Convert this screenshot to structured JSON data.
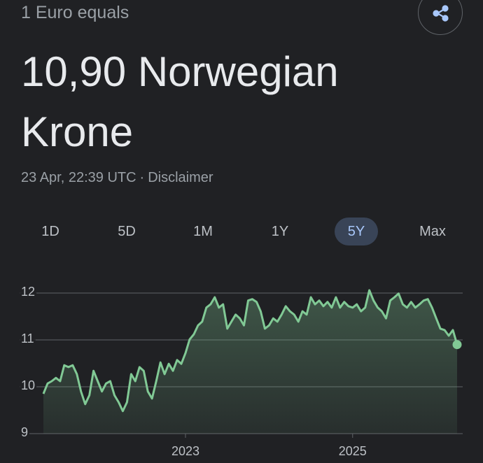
{
  "header": {
    "subtitle": "1 Euro equals",
    "rate": "10,90 Norwegian Krone",
    "timestamp": "23 Apr, 22:39 UTC",
    "separator": "·",
    "disclaimer": "Disclaimer"
  },
  "tabs": {
    "items": [
      "1D",
      "5D",
      "1M",
      "1Y",
      "5Y",
      "Max"
    ],
    "selected": 4
  },
  "chart_data": {
    "type": "area",
    "color": "#81c995",
    "x": [
      2021.3,
      2021.35,
      2021.4,
      2021.45,
      2021.5,
      2021.55,
      2021.6,
      2021.65,
      2021.7,
      2021.75,
      2021.8,
      2021.85,
      2021.9,
      2021.95,
      2022,
      2022.05,
      2022.1,
      2022.15,
      2022.2,
      2022.25,
      2022.3,
      2022.35,
      2022.4,
      2022.45,
      2022.5,
      2022.55,
      2022.6,
      2022.65,
      2022.7,
      2022.75,
      2022.8,
      2022.85,
      2022.9,
      2022.95,
      2023,
      2023.05,
      2023.1,
      2023.15,
      2023.2,
      2023.25,
      2023.3,
      2023.35,
      2023.4,
      2023.45,
      2023.5,
      2023.55,
      2023.6,
      2023.65,
      2023.7,
      2023.75,
      2023.8,
      2023.85,
      2023.9,
      2023.95,
      2024,
      2024.05,
      2024.1,
      2024.15,
      2024.2,
      2024.25,
      2024.3,
      2024.35,
      2024.4,
      2024.45,
      2024.5,
      2024.55,
      2024.6,
      2024.65,
      2024.7,
      2024.75,
      2024.8,
      2024.85,
      2024.9,
      2024.95,
      2025,
      2025.05,
      2025.1,
      2025.15,
      2025.2,
      2025.25,
      2025.3,
      2025.35,
      2025.4,
      2025.45,
      2025.5,
      2025.55,
      2025.6,
      2025.65,
      2025.7,
      2025.75,
      2025.8,
      2025.85,
      2025.9,
      2025.95,
      2026,
      2026.05,
      2026.1,
      2026.15,
      2026.2,
      2026.25
    ],
    "values": [
      9.85,
      10.07,
      10.12,
      10.19,
      10.12,
      10.46,
      10.42,
      10.46,
      10.27,
      9.9,
      9.63,
      9.82,
      10.34,
      10.12,
      9.9,
      10.07,
      10.12,
      9.82,
      9.67,
      9.48,
      9.67,
      10.27,
      10.12,
      10.42,
      10.34,
      9.9,
      9.75,
      10.12,
      10.52,
      10.27,
      10.49,
      10.34,
      10.57,
      10.49,
      10.72,
      11.01,
      11.12,
      11.31,
      11.39,
      11.69,
      11.76,
      11.91,
      11.69,
      11.76,
      11.24,
      11.39,
      11.54,
      11.46,
      11.31,
      11.84,
      11.87,
      11.81,
      11.61,
      11.24,
      11.31,
      11.46,
      11.39,
      11.54,
      11.72,
      11.61,
      11.54,
      11.39,
      11.61,
      11.54,
      11.91,
      11.76,
      11.84,
      11.72,
      11.81,
      11.69,
      11.91,
      11.69,
      11.81,
      11.72,
      11.69,
      11.76,
      11.61,
      11.69,
      12.06,
      11.84,
      11.69,
      11.61,
      11.46,
      11.84,
      11.91,
      11.99,
      11.76,
      11.69,
      11.81,
      11.69,
      11.76,
      11.84,
      11.87,
      11.69,
      11.46,
      11.24,
      11.21,
      11.09,
      11.21,
      10.9
    ],
    "xlim": [
      2021.3,
      2026.25
    ],
    "xticks": [
      2023,
      2025
    ],
    "ylim": [
      9,
      12
    ],
    "yticks": [
      9,
      10,
      11,
      12
    ],
    "grid": true
  }
}
